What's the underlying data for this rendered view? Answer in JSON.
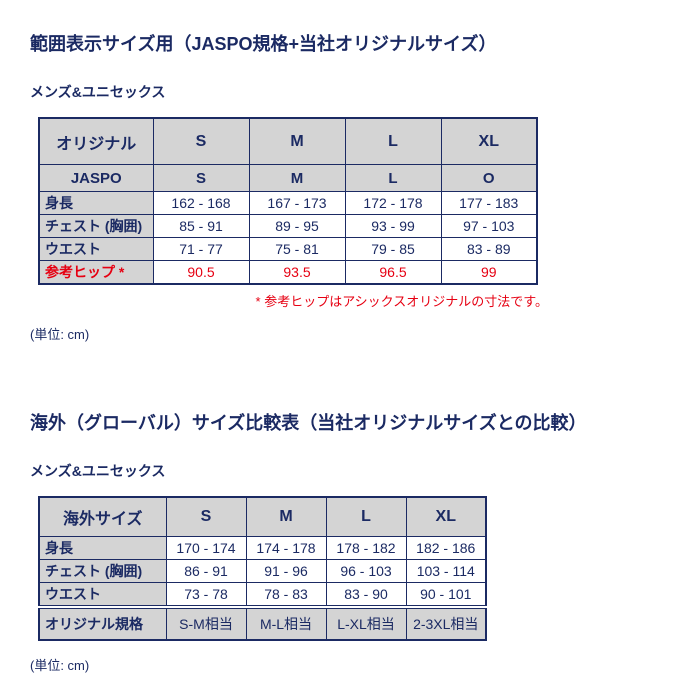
{
  "colors": {
    "navy_text_border": "#1b2a63",
    "cell_gray": "#d4d4d4",
    "accent_red": "#e60012",
    "background": "#ffffff"
  },
  "section1": {
    "title": "範囲表示サイズ用（JASPO規格+当社オリジナルサイズ）",
    "subtitle": "メンズ&ユニセックス",
    "table": {
      "original_row": {
        "label": "オリジナル",
        "cells": [
          "S",
          "M",
          "L",
          "XL"
        ]
      },
      "jaspo_row": {
        "label": "JASPO",
        "cells": [
          "S",
          "M",
          "L",
          "O"
        ]
      },
      "rows": [
        {
          "label": "身長",
          "cells": [
            "162 - 168",
            "167 - 173",
            "172 - 178",
            "177 - 183"
          ]
        },
        {
          "label": "チェスト (胸囲)",
          "cells": [
            "85 - 91",
            "89 - 95",
            "93 - 99",
            "97 - 103"
          ]
        },
        {
          "label": "ウエスト",
          "cells": [
            "71 - 77",
            "75 - 81",
            "79 - 85",
            "83 - 89"
          ]
        }
      ],
      "hip_row": {
        "label": "参考ヒップ *",
        "cells": [
          "90.5",
          "93.5",
          "96.5",
          "99"
        ]
      }
    },
    "note": "* 参考ヒップはアシックスオリジナルの寸法です。",
    "unit": "(単位: cm)"
  },
  "section2": {
    "title": "海外（グローバル）サイズ比較表（当社オリジナルサイズとの比較）",
    "subtitle": "メンズ&ユニセックス",
    "table": {
      "header_row": {
        "label": "海外サイズ",
        "cells": [
          "S",
          "M",
          "L",
          "XL"
        ]
      },
      "rows": [
        {
          "label": "身長",
          "cells": [
            "170 - 174",
            "174 - 178",
            "178 - 182",
            "182 - 186"
          ]
        },
        {
          "label": "チェスト (胸囲)",
          "cells": [
            "86 - 91",
            "91 - 96",
            "96 - 103",
            "103 - 114"
          ]
        },
        {
          "label": "ウエスト",
          "cells": [
            "73 - 78",
            "78 - 83",
            "83 - 90",
            "90 - 101"
          ]
        }
      ],
      "footer_row": {
        "label": "オリジナル規格",
        "cells": [
          "S-M相当",
          "M-L相当",
          "L-XL相当",
          "2-3XL相当"
        ]
      }
    },
    "unit": "(単位: cm)"
  }
}
